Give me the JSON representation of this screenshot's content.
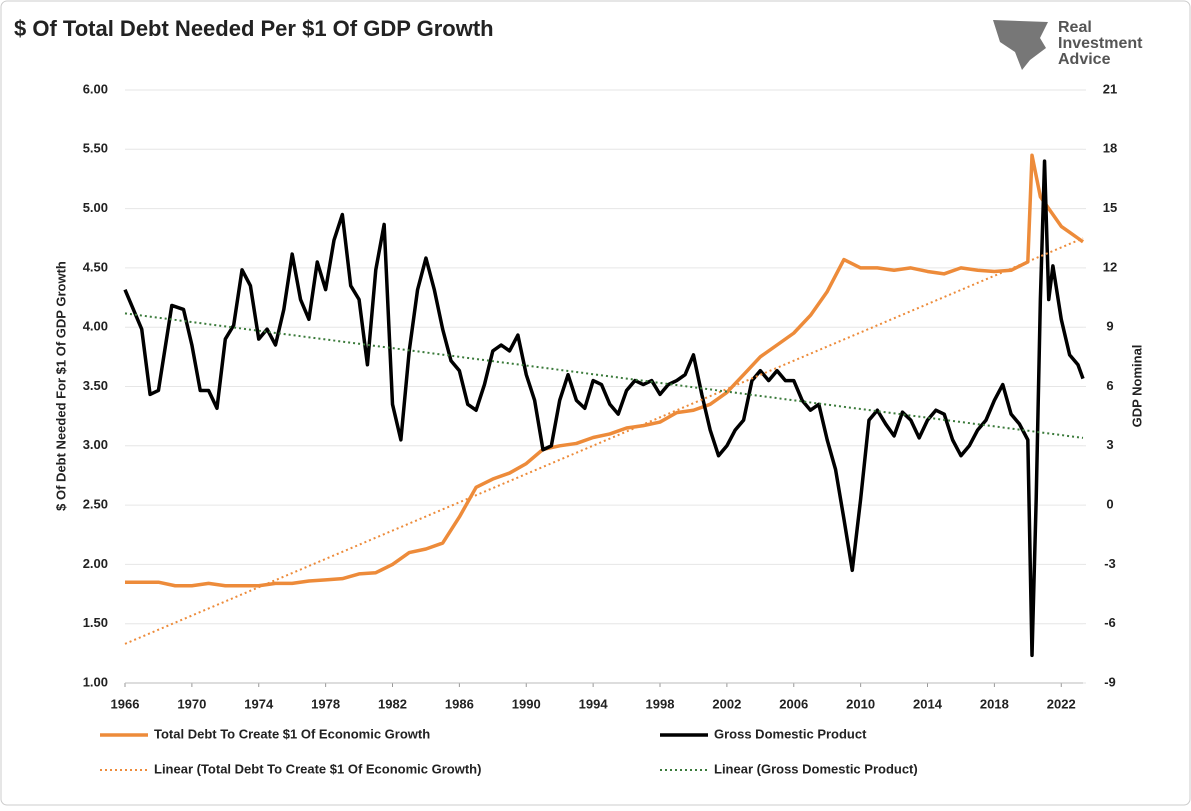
{
  "chart_data": {
    "type": "line",
    "title": "$ Of Total Debt Needed Per $1 Of GDP Growth",
    "logo": [
      "Real",
      "Investment",
      "Advice"
    ],
    "y_label": "$ Of Debt Needed For $1 Of GDP Growth",
    "y2_label": "GDP Nominal",
    "xlim": [
      1966,
      2023.3
    ],
    "xticks": [
      1966,
      1970,
      1974,
      1978,
      1982,
      1986,
      1990,
      1994,
      1998,
      2002,
      2006,
      2010,
      2014,
      2018,
      2022
    ],
    "ylim": [
      1,
      6
    ],
    "yticks": [
      {
        "value": 1,
        "label": "1.00"
      },
      {
        "value": 1.5,
        "label": "1.50"
      },
      {
        "value": 2,
        "label": "2.00"
      },
      {
        "value": 2.5,
        "label": "2.50"
      },
      {
        "value": 3,
        "label": "3.00"
      },
      {
        "value": 3.5,
        "label": "3.50"
      },
      {
        "value": 4,
        "label": "4.00"
      },
      {
        "value": 4.5,
        "label": "4.50"
      },
      {
        "value": 5,
        "label": "5.00"
      },
      {
        "value": 5.5,
        "label": "5.50"
      },
      {
        "value": 6,
        "label": "6.00"
      }
    ],
    "y2lim": [
      -9,
      21
    ],
    "y2ticks": [
      -9,
      -6,
      -3,
      0,
      3,
      6,
      9,
      12,
      15,
      18,
      21
    ],
    "grid": true,
    "series": [
      {
        "name": "Total Debt To Create $1 Of Economic Growth",
        "color": "#ed8b3a",
        "style": "solid",
        "x": [
          1966,
          1967,
          1968,
          1969,
          1970,
          1971,
          1972,
          1973,
          1974,
          1975,
          1976,
          1977,
          1978,
          1979,
          1980,
          1981,
          1982,
          1983,
          1984,
          1985,
          1986,
          1987,
          1988,
          1989,
          1990,
          1991,
          1992,
          1993,
          1994,
          1995,
          1996,
          1997,
          1998,
          1999,
          2000,
          2001,
          2002,
          2003,
          2004,
          2005,
          2006,
          2007,
          2008,
          2009,
          2010,
          2011,
          2012,
          2013,
          2014,
          2015,
          2016,
          2017,
          2018,
          2019,
          2020,
          2020.25,
          2020.75,
          2021,
          2021.5,
          2022,
          2022.5,
          2023,
          2023.3
        ],
        "values": [
          1.85,
          1.85,
          1.85,
          1.82,
          1.82,
          1.84,
          1.82,
          1.82,
          1.82,
          1.84,
          1.84,
          1.86,
          1.87,
          1.88,
          1.92,
          1.93,
          2.0,
          2.1,
          2.13,
          2.18,
          2.4,
          2.65,
          2.72,
          2.77,
          2.85,
          2.97,
          3.0,
          3.02,
          3.07,
          3.1,
          3.15,
          3.17,
          3.2,
          3.28,
          3.3,
          3.35,
          3.45,
          3.6,
          3.75,
          3.85,
          3.95,
          4.1,
          4.3,
          4.57,
          4.5,
          4.5,
          4.48,
          4.5,
          4.47,
          4.45,
          4.5,
          4.48,
          4.47,
          4.48,
          4.55,
          5.45,
          5.1,
          5.05,
          4.95,
          4.85,
          4.8,
          4.75,
          4.72
        ]
      },
      {
        "name": "Gross Domestic Product",
        "color": "#000000",
        "style": "solid",
        "axis": "y2",
        "x": [
          1966,
          1967,
          1967.5,
          1968,
          1968.8,
          1969.5,
          1970,
          1970.5,
          1971,
          1971.5,
          1972,
          1972.5,
          1973,
          1973.5,
          1974,
          1974.5,
          1975,
          1975.5,
          1976,
          1976.5,
          1977,
          1977.5,
          1978,
          1978.5,
          1979,
          1979.5,
          1980,
          1980.5,
          1981,
          1981.5,
          1982,
          1982.5,
          1983,
          1983.5,
          1984,
          1984.5,
          1985,
          1985.5,
          1986,
          1986.5,
          1987,
          1987.5,
          1988,
          1988.5,
          1989,
          1989.5,
          1990,
          1990.5,
          1991,
          1991.5,
          1992,
          1992.5,
          1993,
          1993.5,
          1994,
          1994.5,
          1995,
          1995.5,
          1996,
          1996.5,
          1997,
          1997.5,
          1998,
          1998.5,
          1999,
          1999.5,
          2000,
          2000.5,
          2001,
          2001.5,
          2002,
          2002.5,
          2003,
          2003.5,
          2004,
          2004.5,
          2005,
          2005.5,
          2006,
          2006.5,
          2007,
          2007.5,
          2008,
          2008.5,
          2009,
          2009.5,
          2010,
          2010.5,
          2011,
          2011.5,
          2012,
          2012.5,
          2013,
          2013.5,
          2014,
          2014.5,
          2015,
          2015.5,
          2016,
          2016.5,
          2017,
          2017.5,
          2018,
          2018.5,
          2019,
          2019.5,
          2020,
          2020.25,
          2020.5,
          2020.75,
          2021,
          2021.25,
          2021.5,
          2022,
          2022.5,
          2023,
          2023.3
        ],
        "values": [
          10.9,
          8.9,
          5.6,
          5.8,
          10.1,
          9.9,
          8.1,
          5.8,
          5.8,
          4.9,
          8.4,
          9.1,
          11.9,
          11.1,
          8.4,
          8.9,
          8.1,
          9.9,
          12.7,
          10.4,
          9.4,
          12.3,
          10.9,
          13.4,
          14.7,
          11.1,
          10.4,
          7.1,
          11.9,
          14.2,
          5.1,
          3.3,
          7.8,
          10.9,
          12.5,
          10.9,
          8.9,
          7.3,
          6.8,
          5.1,
          4.8,
          6.1,
          7.8,
          8.1,
          7.8,
          8.6,
          6.6,
          5.3,
          2.8,
          3.0,
          5.3,
          6.6,
          5.3,
          4.9,
          6.3,
          6.1,
          5.1,
          4.6,
          5.8,
          6.3,
          6.1,
          6.3,
          5.6,
          6.1,
          6.3,
          6.6,
          7.6,
          5.6,
          3.8,
          2.5,
          3.0,
          3.8,
          4.3,
          6.3,
          6.8,
          6.3,
          6.8,
          6.3,
          6.3,
          5.3,
          4.8,
          5.1,
          3.3,
          1.8,
          -0.7,
          -3.3,
          0.3,
          4.3,
          4.8,
          4.1,
          3.5,
          4.7,
          4.3,
          3.4,
          4.3,
          4.8,
          4.6,
          3.3,
          2.5,
          3.0,
          3.8,
          4.3,
          5.3,
          6.1,
          4.6,
          4.1,
          3.3,
          -7.6,
          0.3,
          10.4,
          17.4,
          10.4,
          12.1,
          9.4,
          7.6,
          7.1,
          6.4
        ]
      },
      {
        "name": "Linear (Total Debt To Create $1 Of Economic Growth)",
        "color": "#ed8b3a",
        "style": "dotted",
        "x": [
          1966,
          2023.3
        ],
        "values": [
          1.33,
          4.75
        ]
      },
      {
        "name": "Linear (Gross Domestic Product)",
        "color": "#3a7a3a",
        "style": "dotted",
        "axis": "y2",
        "x": [
          1966,
          2023.3
        ],
        "values": [
          9.7,
          3.4
        ]
      }
    ]
  }
}
